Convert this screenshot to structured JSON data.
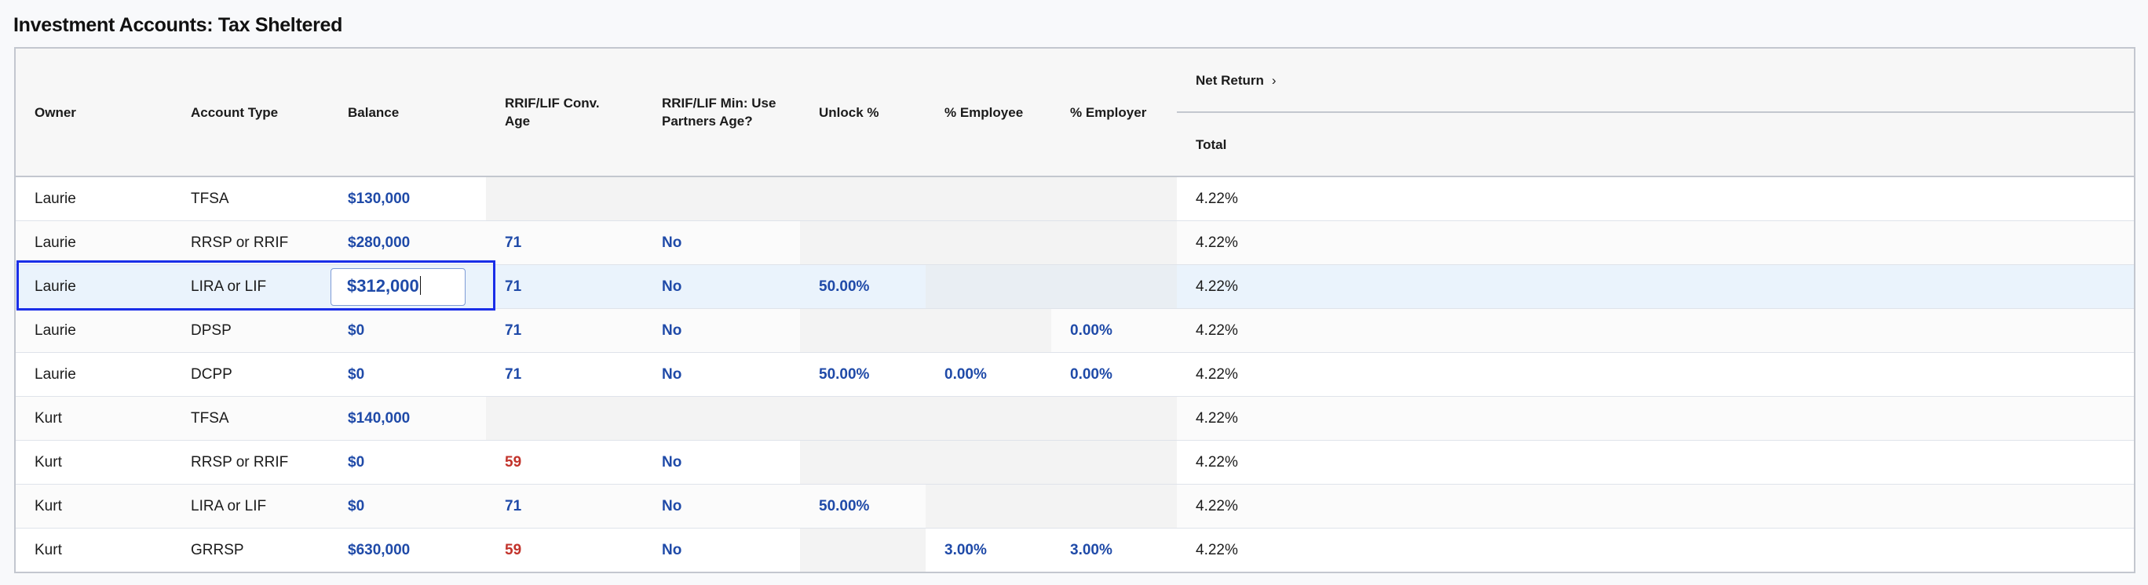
{
  "title": "Investment Accounts: Tax Sheltered",
  "columns": {
    "owner": "Owner",
    "account_type": "Account Type",
    "balance": "Balance",
    "conv_age": "RRIF/LIF Conv. Age",
    "use_partner_age": "RRIF/LIF Min: Use Partners Age?",
    "unlock": "Unlock %",
    "employee": "% Employee",
    "employer": "% Employer",
    "net_return": "Net Return",
    "net_return_chevron": "›",
    "total": "Total"
  },
  "colors": {
    "value": "#1f4aa8",
    "warning": "#c2332b",
    "focus": "#1a2ee8"
  },
  "rows": [
    {
      "owner": "Laurie",
      "account_type": "TFSA",
      "balance": "$130,000",
      "conv_age": "",
      "use_partner_age": "",
      "unlock": "",
      "employee": "",
      "employer": "",
      "total": "4.22%",
      "disabled": [
        "conv_age",
        "use_partner_age",
        "unlock",
        "employee",
        "employer"
      ]
    },
    {
      "owner": "Laurie",
      "account_type": "RRSP or RRIF",
      "balance": "$280,000",
      "conv_age": "71",
      "use_partner_age": "No",
      "unlock": "",
      "employee": "",
      "employer": "",
      "total": "4.22%",
      "disabled": [
        "unlock",
        "employee",
        "employer"
      ]
    },
    {
      "owner": "Laurie",
      "account_type": "LIRA or LIF",
      "balance": "$312,000",
      "conv_age": "71",
      "use_partner_age": "No",
      "unlock": "50.00%",
      "employee": "",
      "employer": "",
      "total": "4.22%",
      "disabled": [
        "employee",
        "employer"
      ],
      "selected": true,
      "editing": "balance"
    },
    {
      "owner": "Laurie",
      "account_type": "DPSP",
      "balance": "$0",
      "conv_age": "71",
      "use_partner_age": "No",
      "unlock": "",
      "employee": "",
      "employer": "0.00%",
      "total": "4.22%",
      "disabled": [
        "unlock",
        "employee"
      ]
    },
    {
      "owner": "Laurie",
      "account_type": "DCPP",
      "balance": "$0",
      "conv_age": "71",
      "use_partner_age": "No",
      "unlock": "50.00%",
      "employee": "0.00%",
      "employer": "0.00%",
      "total": "4.22%",
      "disabled": []
    },
    {
      "owner": "Kurt",
      "account_type": "TFSA",
      "balance": "$140,000",
      "conv_age": "",
      "use_partner_age": "",
      "unlock": "",
      "employee": "",
      "employer": "",
      "total": "4.22%",
      "disabled": [
        "conv_age",
        "use_partner_age",
        "unlock",
        "employee",
        "employer"
      ]
    },
    {
      "owner": "Kurt",
      "account_type": "RRSP or RRIF",
      "balance": "$0",
      "conv_age": "59",
      "conv_age_warning": true,
      "use_partner_age": "No",
      "unlock": "",
      "employee": "",
      "employer": "",
      "total": "4.22%",
      "disabled": [
        "unlock",
        "employee",
        "employer"
      ]
    },
    {
      "owner": "Kurt",
      "account_type": "LIRA or LIF",
      "balance": "$0",
      "conv_age": "71",
      "use_partner_age": "No",
      "unlock": "50.00%",
      "employee": "",
      "employer": "",
      "total": "4.22%",
      "disabled": [
        "employee",
        "employer"
      ]
    },
    {
      "owner": "Kurt",
      "account_type": "GRRSP",
      "balance": "$630,000",
      "conv_age": "59",
      "conv_age_warning": true,
      "use_partner_age": "No",
      "unlock": "",
      "employee": "3.00%",
      "employer": "3.00%",
      "total": "4.22%",
      "disabled": [
        "unlock"
      ]
    }
  ]
}
